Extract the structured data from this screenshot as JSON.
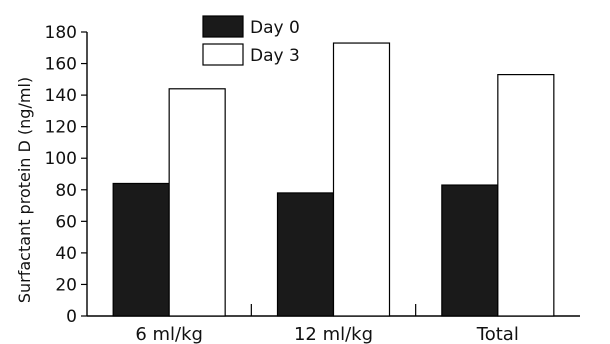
{
  "chart_data": {
    "type": "bar",
    "title": "",
    "xlabel": "",
    "ylabel": "Surfactant protein D (ng/ml)",
    "categories": [
      "6 ml/kg",
      "12 ml/kg",
      "Total"
    ],
    "series": [
      {
        "name": "Day 0",
        "values": [
          84,
          78,
          83
        ],
        "color": "#1a1a1a"
      },
      {
        "name": "Day 3",
        "values": [
          144,
          173,
          153
        ],
        "color": "#ffffff"
      }
    ],
    "ylim": [
      0,
      180
    ],
    "yticks": [
      0,
      20,
      40,
      60,
      80,
      100,
      120,
      140,
      160,
      180
    ],
    "grid": false,
    "legend": "top-left"
  }
}
